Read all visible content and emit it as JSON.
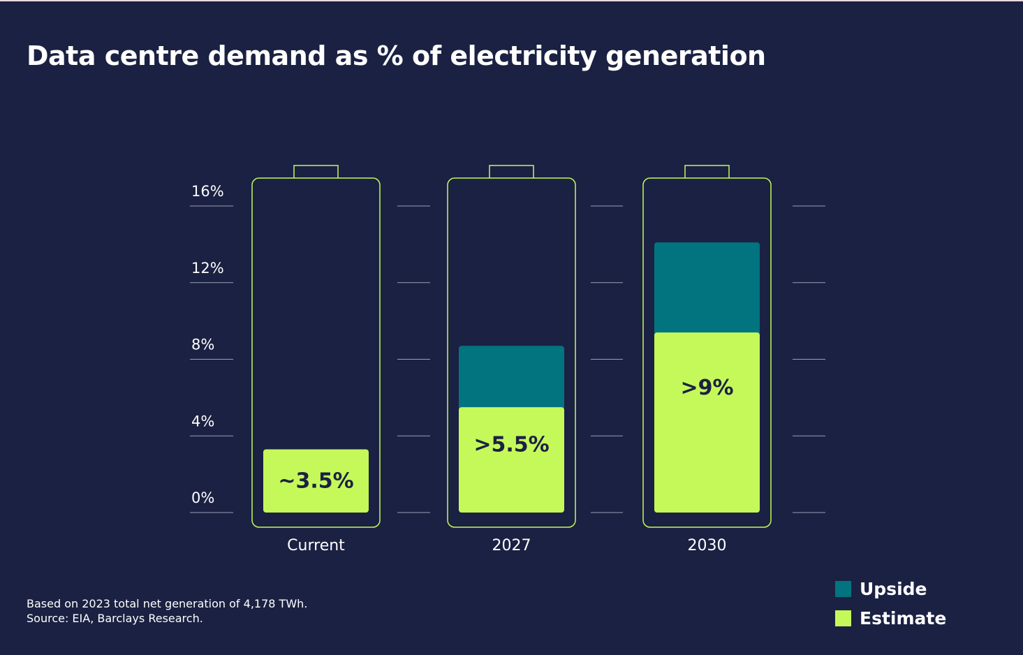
{
  "chart_data": {
    "type": "bar",
    "stacked": true,
    "title": "Data centre demand as % of electricity generation",
    "xlabel": "",
    "ylabel": "",
    "ylim": [
      0,
      16
    ],
    "yticks": [
      0,
      4,
      8,
      12,
      16
    ],
    "ytick_labels": [
      "0%",
      "4%",
      "8%",
      "12%",
      "16%"
    ],
    "categories": [
      "Current",
      "2027",
      "2030"
    ],
    "series": [
      {
        "name": "Estimate",
        "color": "#c5f95a",
        "values": [
          3.3,
          5.5,
          9.4
        ]
      },
      {
        "name": "Upside",
        "color": "#027480",
        "values": [
          0,
          3.2,
          4.7
        ]
      }
    ],
    "data_labels": [
      "~3.5%",
      ">5.5%",
      ">9%"
    ],
    "legend_position": "bottom-right",
    "grid": true
  },
  "footnote": {
    "line1": "Based on 2023 total net generation of 4,178 TWh.",
    "line2": "Source: EIA, Barclays Research."
  },
  "legend": [
    {
      "label": "Upside",
      "color": "#027480"
    },
    {
      "label": "Estimate",
      "color": "#c5f95a"
    }
  ]
}
